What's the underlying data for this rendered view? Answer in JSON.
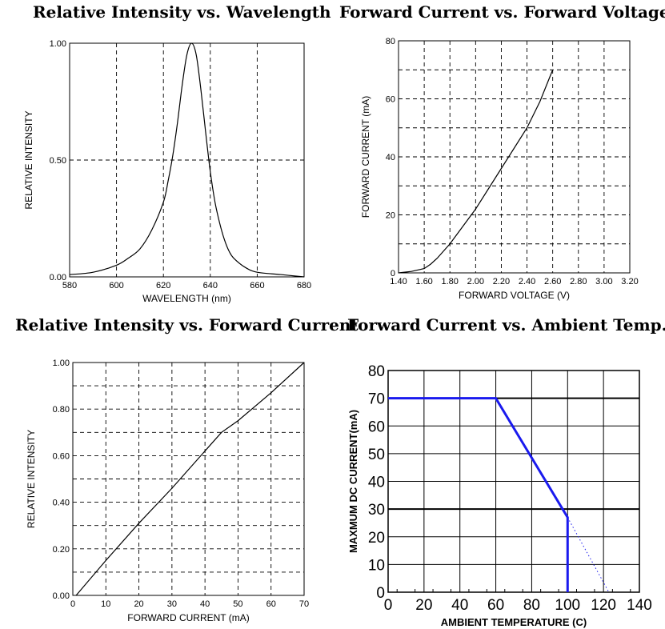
{
  "chart_data": [
    {
      "type": "line",
      "title": "Relative Intensity vs. Wavelength",
      "xlabel": "WAVELENGTH (nm)",
      "ylabel": "RELATIVE INTENSITY",
      "xlim": [
        580,
        680
      ],
      "ylim": [
        0,
        1
      ],
      "x_ticks": [
        "580",
        "600",
        "620",
        "640",
        "660",
        "680"
      ],
      "y_ticks": [
        "0.00",
        "0.50",
        "1.00"
      ],
      "grid": "dashed",
      "series": [
        {
          "x": [
            580,
            590,
            600,
            605,
            610,
            615,
            620,
            622,
            624,
            626,
            628,
            630,
            632,
            634,
            636,
            638,
            640,
            642,
            644,
            646,
            648,
            650,
            655,
            660,
            670,
            680
          ],
          "y": [
            0.01,
            0.02,
            0.05,
            0.08,
            0.12,
            0.2,
            0.32,
            0.41,
            0.52,
            0.66,
            0.82,
            0.95,
            1.0,
            0.95,
            0.8,
            0.62,
            0.45,
            0.32,
            0.23,
            0.16,
            0.11,
            0.08,
            0.04,
            0.02,
            0.01,
            0.0
          ]
        }
      ]
    },
    {
      "type": "line",
      "title": "Forward Current vs. Forward Voltage",
      "xlabel": "FORWARD VOLTAGE (V)",
      "ylabel": "FORWARD CURRENT (mA)",
      "xlim": [
        1.4,
        3.2
      ],
      "ylim": [
        0,
        80
      ],
      "x_ticks": [
        "1.40",
        "1.60",
        "1.80",
        "2.00",
        "2.20",
        "2.40",
        "2.60",
        "2.80",
        "3.00",
        "3.20"
      ],
      "y_ticks": [
        "0",
        "20",
        "40",
        "60",
        "80"
      ],
      "grid": "dashed",
      "series": [
        {
          "x": [
            1.4,
            1.5,
            1.6,
            1.65,
            1.7,
            1.8,
            1.9,
            2.0,
            2.1,
            2.2,
            2.3,
            2.4,
            2.5,
            2.6
          ],
          "y": [
            0.0,
            0.5,
            1.5,
            3.0,
            5.0,
            10.0,
            16.0,
            22.0,
            29.0,
            36.0,
            43.0,
            50.0,
            59.0,
            70.0
          ]
        }
      ]
    },
    {
      "type": "line",
      "title": "Relative Intensity vs. Forward Current",
      "xlabel": "FORWARD CURRENT (mA)",
      "ylabel": "RELATIVE INTENSITY",
      "xlim": [
        0,
        70
      ],
      "ylim": [
        0,
        1
      ],
      "x_ticks": [
        "0",
        "10",
        "20",
        "30",
        "40",
        "50",
        "60",
        "70"
      ],
      "y_ticks": [
        "0.00",
        "0.20",
        "0.40",
        "0.60",
        "0.80",
        "1.00"
      ],
      "grid": "dashed",
      "series": [
        {
          "x": [
            1,
            10,
            20,
            30,
            40,
            45,
            50,
            60,
            70
          ],
          "y": [
            0.0,
            0.15,
            0.31,
            0.46,
            0.62,
            0.7,
            0.75,
            0.87,
            1.0
          ]
        }
      ]
    },
    {
      "type": "line",
      "title": "Forward Current vs. Ambient Temp.",
      "xlabel": "AMBIENT TEMPERATURE (C)",
      "ylabel": "MAXMUM DC CURRENT(mA)",
      "xlim": [
        0,
        140
      ],
      "ylim": [
        0,
        80
      ],
      "x_ticks": [
        "0",
        "20",
        "40",
        "60",
        "80",
        "100",
        "120",
        "140"
      ],
      "y_ticks": [
        "0",
        "10",
        "20",
        "30",
        "40",
        "50",
        "60",
        "70",
        "80"
      ],
      "grid": "solid",
      "line_color": "#1a1aee",
      "series": [
        {
          "style": "solid",
          "x": [
            0,
            60,
            100,
            100
          ],
          "y": [
            70,
            70,
            27,
            0
          ]
        },
        {
          "style": "dotted",
          "x": [
            100,
            123
          ],
          "y": [
            27,
            0
          ]
        }
      ]
    }
  ]
}
